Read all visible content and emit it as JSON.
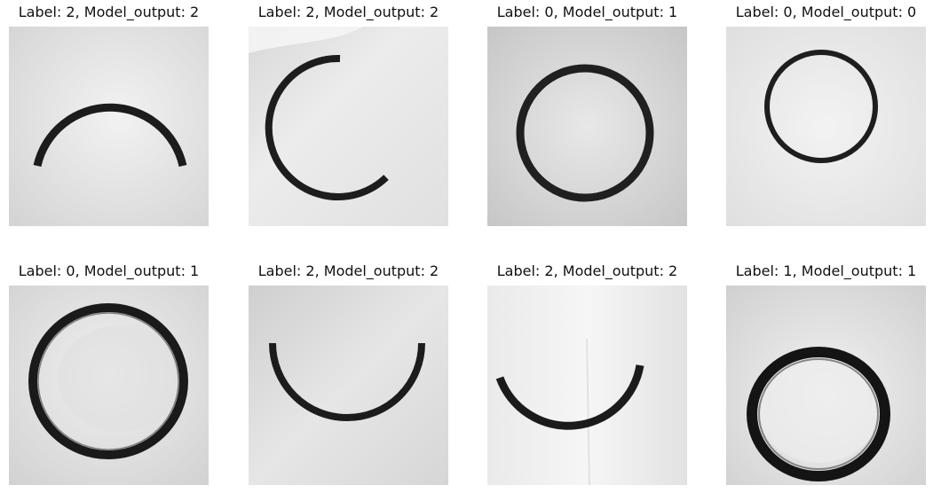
{
  "grid": {
    "cells": [
      {
        "caption": "Label: 2, Model_output: 2",
        "shape": "upper-half-arc",
        "bg": "#e4e4e4"
      },
      {
        "caption": "Label: 2, Model_output: 2",
        "shape": "left-c-arc",
        "bg": "#e9e9e9"
      },
      {
        "caption": "Label: 0, Model_output: 1",
        "shape": "full-ring",
        "bg": "#dedede"
      },
      {
        "caption": "Label: 0, Model_output: 0",
        "shape": "full-ring-small",
        "bg": "#ececec"
      },
      {
        "caption": "Label: 0, Model_output: 1",
        "shape": "full-ring-thick",
        "bg": "#e6e6e6"
      },
      {
        "caption": "Label: 2, Model_output: 2",
        "shape": "lower-half-arc",
        "bg": "#e2e2e2"
      },
      {
        "caption": "Label: 2, Model_output: 2",
        "shape": "lower-half-arc-offset",
        "bg": "#efefef"
      },
      {
        "caption": "Label: 1, Model_output: 1",
        "shape": "full-ring-heavy",
        "bg": "#e3e3e3"
      }
    ]
  }
}
